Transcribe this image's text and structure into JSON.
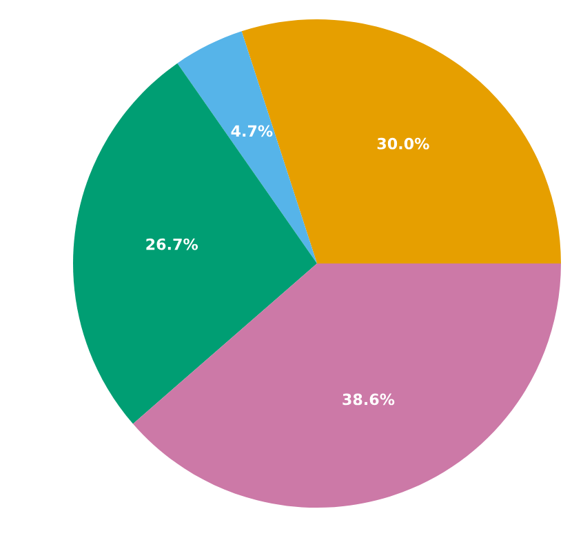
{
  "chart_data": {
    "type": "pie",
    "categories": [
      null,
      null,
      null,
      null
    ],
    "values": [
      30.0,
      4.7,
      26.7,
      38.6
    ],
    "colors": [
      "#e69f00",
      "#56b4e9",
      "#009e73",
      "#cc79a7"
    ],
    "value_labels": [
      "30.0%",
      "4.7%",
      "26.7%",
      "38.6%"
    ]
  }
}
